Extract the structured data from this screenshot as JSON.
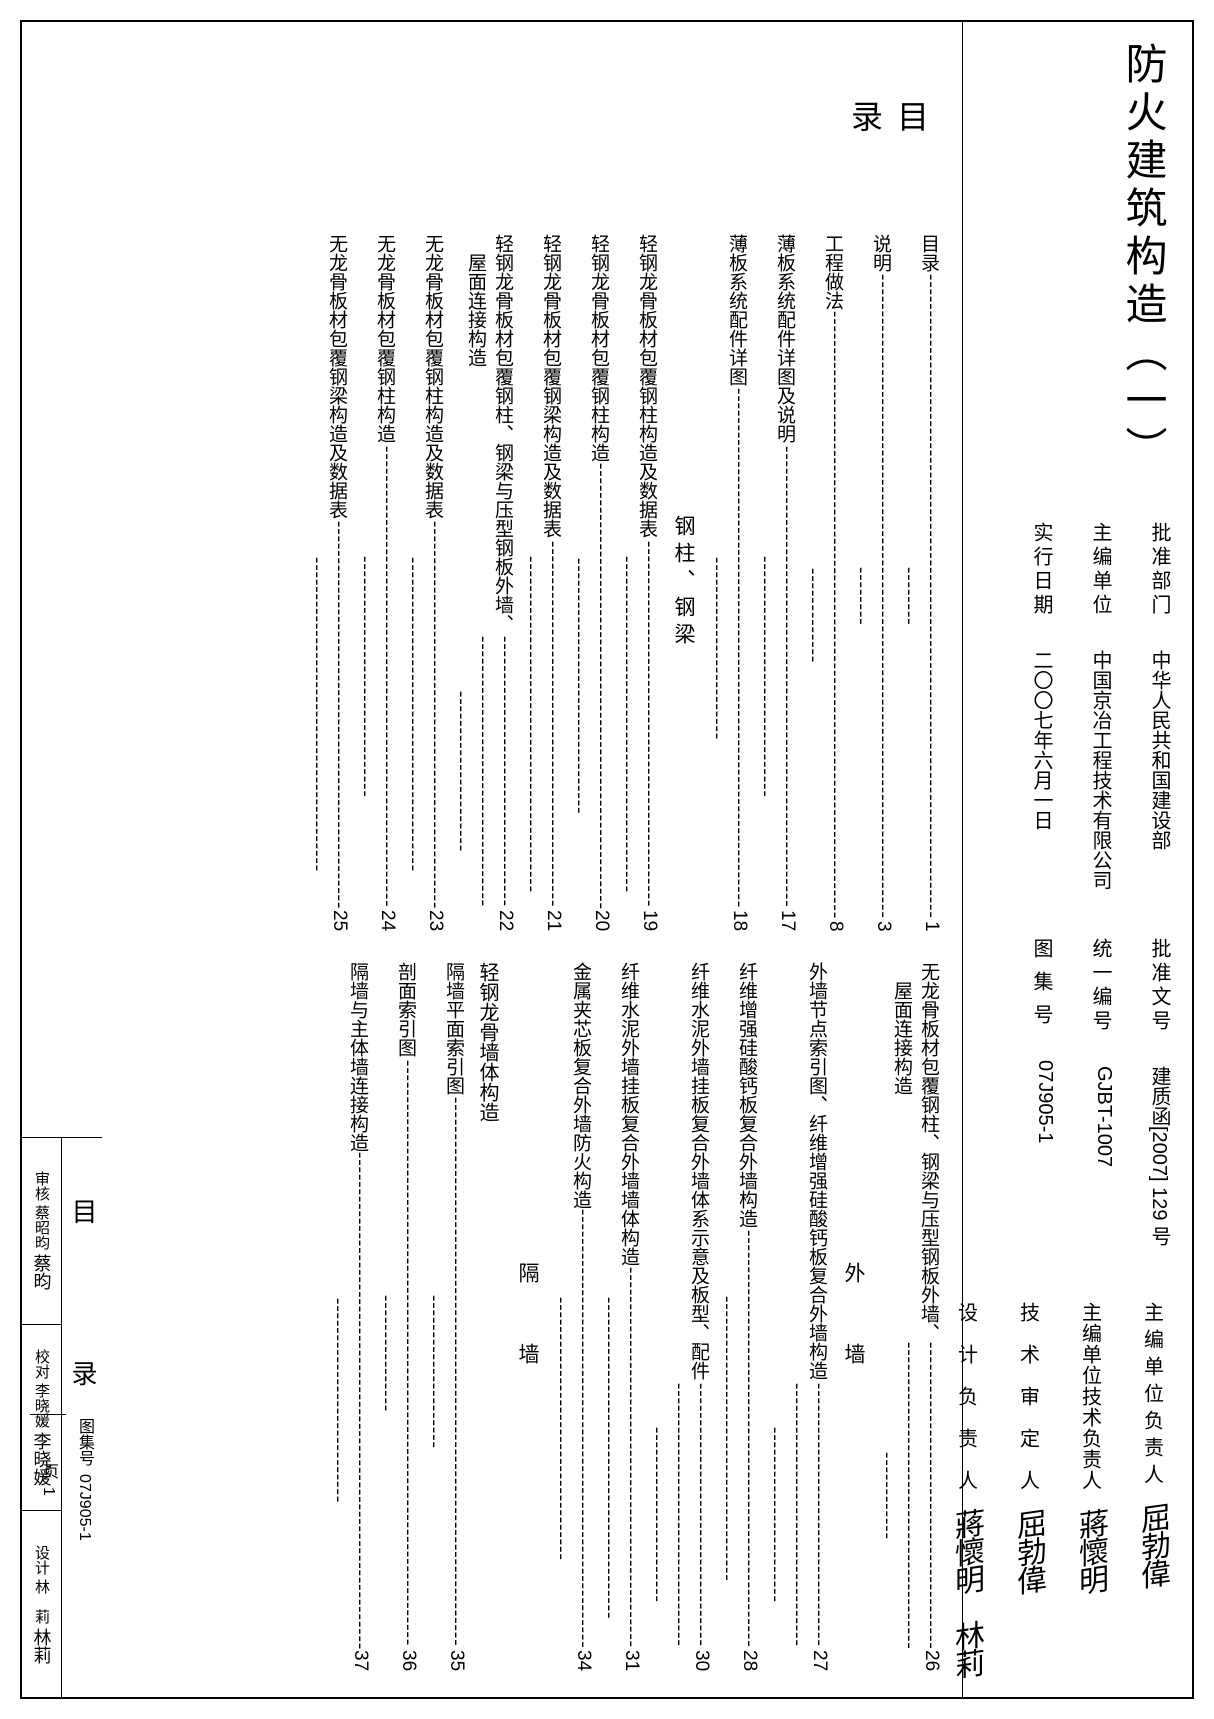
{
  "title": "防火建筑构造（一）",
  "header_left": [
    {
      "label": "批准部门",
      "value": "中华人民共和国建设部"
    },
    {
      "label": "主编单位",
      "value": "中国京冶工程技术有限公司"
    },
    {
      "label": "实行日期",
      "value": "二〇〇七年六月一日"
    }
  ],
  "header_mid": [
    {
      "label": "批准文号",
      "value": "建质函[2007] 129 号"
    },
    {
      "label": "统一编号",
      "value": "GJBT-1007"
    },
    {
      "label": "图 集 号",
      "value": "07J905-1"
    }
  ],
  "signatures": [
    {
      "role": "主 编 单 位 负 责 人",
      "mark": "屈勃偉"
    },
    {
      "role": "主编单位技术负责人",
      "mark": "蔣懷明"
    },
    {
      "role": "技　术　审　定　人",
      "mark": "屈勃偉"
    },
    {
      "role": "设　计　负　责　人",
      "mark": "蔣懷明　林莉"
    }
  ],
  "toc_heading": "目　　录",
  "col1": [
    {
      "t": "目录",
      "p": "1"
    },
    {
      "t": "说明",
      "p": "3"
    },
    {
      "t": "工程做法",
      "p": "8"
    },
    {
      "t": "薄板系统配件详图及说明",
      "p": "17"
    },
    {
      "t": "薄板系统配件详图",
      "p": "18"
    },
    {
      "h": "钢柱、钢梁"
    },
    {
      "t": "轻钢龙骨板材包覆钢柱构造及数据表",
      "p": "19"
    },
    {
      "t": "轻钢龙骨板材包覆钢柱构造",
      "p": "20"
    },
    {
      "t": "轻钢龙骨板材包覆钢梁构造及数据表",
      "p": "21"
    },
    {
      "t": "轻钢龙骨板材包覆钢柱、钢梁与压型钢板外墙、\n　屋面连接构造",
      "p": "22"
    },
    {
      "t": "无龙骨板材包覆钢柱构造及数据表",
      "p": "23"
    },
    {
      "t": "无龙骨板材包覆钢柱构造",
      "p": "24"
    },
    {
      "t": "无龙骨板材包覆钢梁构造及数据表",
      "p": "25"
    }
  ],
  "col2": [
    {
      "t": "无龙骨板材包覆钢柱、钢梁与压型钢板外墙、\n　屋面连接构造",
      "p": "26"
    },
    {
      "h": "外　　墙"
    },
    {
      "t": "外墙节点索引图、纤维增强硅酸钙板复合外墙构造",
      "p": "27"
    },
    {
      "t": "纤维增强硅酸钙板复合外墙构造",
      "p": "28"
    },
    {
      "t": "纤维水泥外墙挂板复合外墙体系示意及板型、配件",
      "p": "30"
    },
    {
      "t": "纤维水泥外墙挂板复合外墙墙体构造",
      "p": "31"
    },
    {
      "t": "金属夹芯板复合外墙防火构造",
      "p": "34"
    },
    {
      "h": "隔　　墙"
    },
    {
      "b": "轻钢龙骨墙体构造"
    },
    {
      "t": "隔墙平面索引图",
      "p": "35"
    },
    {
      "t": "剖面索引图",
      "p": "36"
    },
    {
      "t": "隔墙与主体墙连接构造",
      "p": "37"
    }
  ],
  "titleblock": {
    "mulu": "目　　录",
    "atlas_label": "图集号",
    "atlas_no": "07J905-1",
    "page_label": "页",
    "page_no": "1",
    "checks": [
      {
        "role": "审核",
        "name": "蔡昭昀",
        "sig": "蔡昀"
      },
      {
        "role": "校对",
        "name": "李晓媛",
        "sig": "李晓媛"
      },
      {
        "role": "设计",
        "name": "林　莉",
        "sig": "林莉"
      }
    ]
  },
  "colors": {
    "ink": "#000000",
    "paper": "#ffffff"
  },
  "typography": {
    "body_pt": 19,
    "title_pt": 42,
    "heading_pt": 32
  }
}
